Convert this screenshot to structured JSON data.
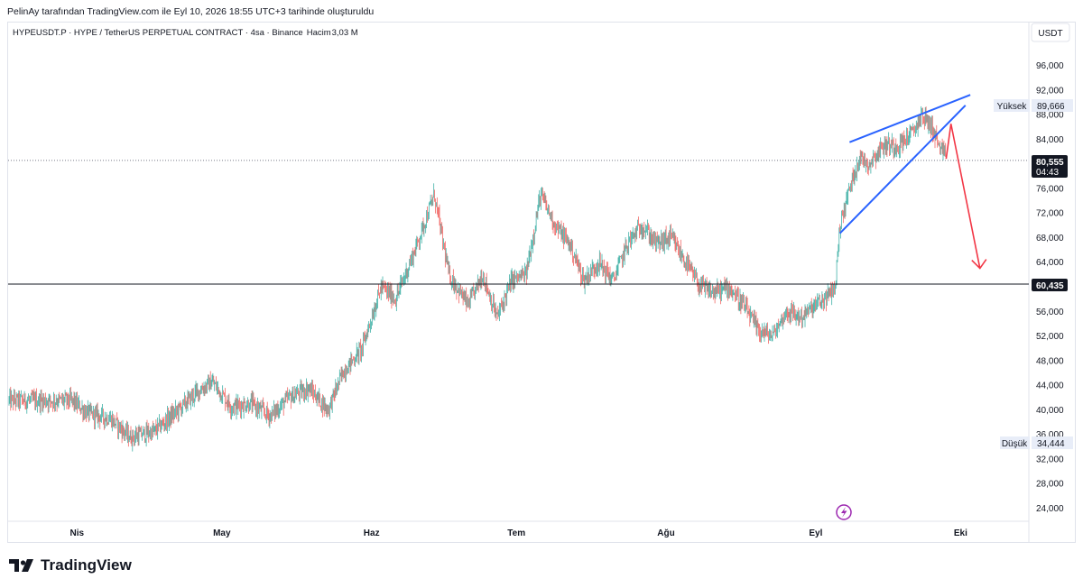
{
  "header": {
    "text": "PelinAy tarafından TradingView.com ile Eyl 10, 2026 18:55 UTC+3 tarihinde oluşturuldu"
  },
  "symbol_info": {
    "title": "HYPEUSDT.P · HYPE / TetherUS PERPETUAL CONTRACT · 4sa · Binance",
    "volume_label": "Hacim",
    "volume_value": "3,03 M",
    "volume_color": "#f23645"
  },
  "price_axis": {
    "currency": "USDT",
    "high_label": "Yüksek",
    "high_value": "89,666",
    "low_label": "Düşük",
    "low_value": "34,444",
    "last_price": "80,555",
    "countdown": "04:43",
    "level_line": "60,435"
  },
  "footer": {
    "brand": "TradingView"
  },
  "colors": {
    "up": "#26a69a",
    "down": "#ef5350",
    "wedge": "#2962ff",
    "arrow": "#f23645",
    "level": "#131722"
  },
  "chart_data": {
    "type": "candlestick",
    "title": "",
    "xlabel": "",
    "ylabel": "",
    "x_ticks": [
      "Nis",
      "May",
      "Haz",
      "Tem",
      "Ağu",
      "Eyl",
      "Eki"
    ],
    "y_ticks": [
      "96,000",
      "92,000",
      "88,000",
      "84,000",
      "76,000",
      "72,000",
      "68,000",
      "64,000",
      "56,000",
      "52,000",
      "48,000",
      "44,000",
      "40,000",
      "36,000",
      "32,000",
      "28,000",
      "24,000"
    ],
    "ylim": [
      21.5,
      102
    ],
    "price_path": [
      {
        "date": "2026-03-31",
        "close": 41.5
      },
      {
        "date": "2026-04-03",
        "close": 39.5
      },
      {
        "date": "2026-04-08",
        "close": 38.5
      },
      {
        "date": "2026-04-12",
        "close": 35.5
      },
      {
        "date": "2026-04-17",
        "close": 36.5
      },
      {
        "date": "2026-04-22",
        "close": 40
      },
      {
        "date": "2026-04-26",
        "close": 43
      },
      {
        "date": "2026-04-29",
        "close": 44.5
      },
      {
        "date": "2026-05-03",
        "close": 40.5
      },
      {
        "date": "2026-05-07",
        "close": 41
      },
      {
        "date": "2026-05-11",
        "close": 39
      },
      {
        "date": "2026-05-15",
        "close": 42
      },
      {
        "date": "2026-05-19",
        "close": 43.5
      },
      {
        "date": "2026-05-23",
        "close": 40
      },
      {
        "date": "2026-05-26",
        "close": 46
      },
      {
        "date": "2026-05-30",
        "close": 50
      },
      {
        "date": "2026-06-03",
        "close": 60
      },
      {
        "date": "2026-06-06",
        "close": 58
      },
      {
        "date": "2026-06-10",
        "close": 66
      },
      {
        "date": "2026-06-14",
        "close": 75
      },
      {
        "date": "2026-06-17",
        "close": 62
      },
      {
        "date": "2026-06-21",
        "close": 57
      },
      {
        "date": "2026-06-24",
        "close": 62
      },
      {
        "date": "2026-06-27",
        "close": 55
      },
      {
        "date": "2026-06-30",
        "close": 61
      },
      {
        "date": "2026-07-03",
        "close": 62
      },
      {
        "date": "2026-07-06",
        "close": 75
      },
      {
        "date": "2026-07-09",
        "close": 70
      },
      {
        "date": "2026-07-12",
        "close": 67
      },
      {
        "date": "2026-07-15",
        "close": 61
      },
      {
        "date": "2026-07-18",
        "close": 64
      },
      {
        "date": "2026-07-21",
        "close": 61
      },
      {
        "date": "2026-07-24",
        "close": 67
      },
      {
        "date": "2026-07-27",
        "close": 70
      },
      {
        "date": "2026-07-30",
        "close": 67
      },
      {
        "date": "2026-08-02",
        "close": 68
      },
      {
        "date": "2026-08-05",
        "close": 64
      },
      {
        "date": "2026-08-08",
        "close": 60
      },
      {
        "date": "2026-08-11",
        "close": 59
      },
      {
        "date": "2026-08-14",
        "close": 60
      },
      {
        "date": "2026-08-17",
        "close": 57
      },
      {
        "date": "2026-08-20",
        "close": 53
      },
      {
        "date": "2026-08-23",
        "close": 52
      },
      {
        "date": "2026-08-26",
        "close": 56
      },
      {
        "date": "2026-08-29",
        "close": 55
      },
      {
        "date": "2026-09-01",
        "close": 57
      },
      {
        "date": "2026-09-03",
        "close": 58
      },
      {
        "date": "2026-09-05",
        "close": 60
      },
      {
        "date": "2026-09-06",
        "close": 70
      },
      {
        "date": "2026-09-08",
        "close": 76
      },
      {
        "date": "2026-09-10",
        "close": 81
      },
      {
        "date": "2026-09-12",
        "close": 80
      },
      {
        "date": "2026-09-15",
        "close": 83
      },
      {
        "date": "2026-09-18",
        "close": 83
      },
      {
        "date": "2026-09-21",
        "close": 85
      },
      {
        "date": "2026-09-23",
        "close": 88
      },
      {
        "date": "2026-09-25",
        "close": 86
      },
      {
        "date": "2026-09-27",
        "close": 82
      },
      {
        "date": "2026-09-28",
        "close": 81
      }
    ],
    "drawings": {
      "wedge_upper": [
        {
          "date": "2026-09-08",
          "price": 83.5
        },
        {
          "date": "2026-10-03",
          "price": 91.2
        }
      ],
      "wedge_lower": [
        {
          "date": "2026-09-06",
          "price": 68.7
        },
        {
          "date": "2026-10-02",
          "price": 89.5
        }
      ],
      "arrow": [
        {
          "date": "2026-09-28",
          "price": 80.8
        },
        {
          "date": "2026-09-29",
          "price": 86.5
        },
        {
          "date": "2026-10-05",
          "price": 63
        }
      ],
      "horizontal_level": 60.435,
      "last_price_line": 80.555
    }
  }
}
